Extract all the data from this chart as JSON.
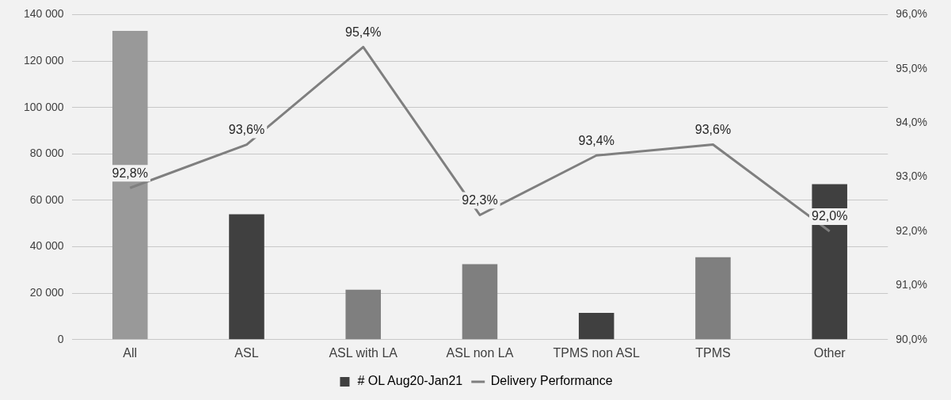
{
  "chart_data": {
    "type": "bar",
    "categories": [
      "All",
      "ASL",
      "ASL with LA",
      "ASL non LA",
      "TPMS non ASL",
      "TPMS",
      "Other"
    ],
    "series": [
      {
        "name": "# OL Aug20-Jan21",
        "color": "#404040",
        "colors": [
          "#999999",
          "#404040",
          "#7f7f7f",
          "#7f7f7f",
          "#404040",
          "#7f7f7f",
          "#404040"
        ],
        "values": [
          133000,
          54000,
          21500,
          32500,
          11500,
          35500,
          67000
        ]
      },
      {
        "name": "Delivery Performance",
        "type": "line",
        "axis": "y2",
        "color": "#7f7f7f",
        "values": [
          92.8,
          93.6,
          95.4,
          92.3,
          93.4,
          93.6,
          92.0
        ],
        "value_labels": [
          "92,8%",
          "93,6%",
          "95,4%",
          "92,3%",
          "93,4%",
          "93,6%",
          "92,0%"
        ]
      }
    ],
    "ylim": [
      0,
      140000
    ],
    "yticks": [
      {
        "value": 0,
        "label": "0"
      },
      {
        "value": 20000,
        "label": "20 000"
      },
      {
        "value": 40000,
        "label": "40 000"
      },
      {
        "value": 60000,
        "label": "60 000"
      },
      {
        "value": 80000,
        "label": "80 000"
      },
      {
        "value": 100000,
        "label": "100 000"
      },
      {
        "value": 120000,
        "label": "120 000"
      },
      {
        "value": 140000,
        "label": "140 000"
      }
    ],
    "y2lim": [
      90,
      96
    ],
    "y2ticks": [
      {
        "value": 90,
        "label": "90,0%"
      },
      {
        "value": 91,
        "label": "91,0%"
      },
      {
        "value": 92,
        "label": "92,0%"
      },
      {
        "value": 93,
        "label": "93,0%"
      },
      {
        "value": 94,
        "label": "94,0%"
      },
      {
        "value": 95,
        "label": "95,0%"
      },
      {
        "value": 96,
        "label": "96,0%"
      }
    ],
    "grid": "y",
    "legend": "bottom",
    "marker": "none",
    "line_style": "solid"
  }
}
